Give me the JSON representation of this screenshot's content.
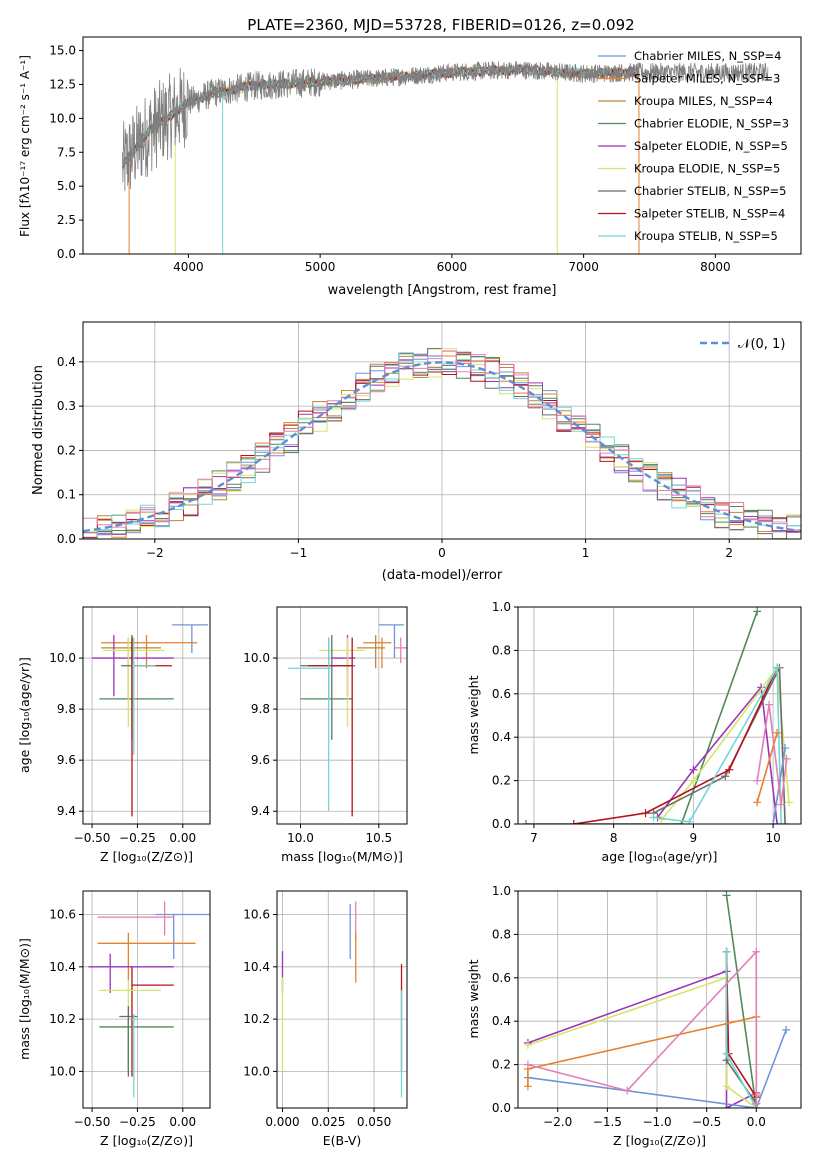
{
  "palette": {
    "chabrier_miles": "#6f94d8",
    "salpeter_miles": "#e87f2a",
    "kroupa_miles": "#b88a3c",
    "chabrier_elodie": "#4f8a5a",
    "salpeter_elodie": "#9b34b8",
    "kroupa_elodie": "#d7e46a",
    "chabrier_stelib": "#6b6b6b",
    "salpeter_stelib": "#b5121b",
    "kroupa_stelib": "#72d7d4",
    "pink": "#e47fb6",
    "gray_data": "#7f7f7f",
    "normal_curve": "#5b8fd6",
    "grid": "#b0b0b0"
  },
  "chart_data": [
    {
      "id": "spectrum",
      "type": "line",
      "title": "PLATE=2360, MJD=53728, FIBERID=0126, z=0.092",
      "xlabel": "wavelength [Angstrom, rest frame]",
      "ylabel": "Flux [fλ10⁻¹⁷ erg cm⁻² s⁻¹ A⁻¹]",
      "xlim": [
        3200,
        8650
      ],
      "ylim": [
        0,
        16
      ],
      "xticks": [
        4000,
        5000,
        6000,
        7000,
        8000
      ],
      "yticks": [
        0.0,
        2.5,
        5.0,
        7.5,
        10.0,
        12.5,
        15.0
      ],
      "grid": false,
      "legend": "right",
      "legend_entries": [
        "Chabrier MILES, N_SSP=4",
        "Salpeter MILES, N_SSP=3",
        "Kroupa MILES, N_SSP=4",
        "Chabrier ELODIE, N_SSP=3",
        "Salpeter ELODIE, N_SSP=5",
        "Kroupa ELODIE, N_SSP=5",
        "Chabrier STELIB, N_SSP=5",
        "Salpeter STELIB, N_SSP=4",
        "Kroupa STELIB, N_SSP=5"
      ],
      "continuum": [
        [
          3500,
          6.5
        ],
        [
          3600,
          7.8
        ],
        [
          3700,
          9.0
        ],
        [
          3800,
          9.8
        ],
        [
          3900,
          10.4
        ],
        [
          4000,
          11.2
        ],
        [
          4200,
          11.9
        ],
        [
          4500,
          12.4
        ],
        [
          5000,
          12.7
        ],
        [
          5500,
          13.0
        ],
        [
          6000,
          13.4
        ],
        [
          6500,
          13.6
        ],
        [
          7000,
          13.3
        ],
        [
          7400,
          13.4
        ]
      ],
      "data_range": [
        3500,
        8400
      ],
      "model_range": [
        3500,
        7420
      ]
    },
    {
      "id": "residuals",
      "type": "line",
      "xlabel": "(data-model)/error",
      "ylabel": "Normed distribution",
      "xlim": [
        -2.5,
        2.5
      ],
      "ylim": [
        0,
        0.49
      ],
      "xticks": [
        -2,
        -1,
        0,
        1,
        2
      ],
      "yticks": [
        0.0,
        0.1,
        0.2,
        0.3,
        0.4
      ],
      "grid": true,
      "legend": "upper right",
      "legend_entries": [
        "𝒩(0, 1)"
      ],
      "bin_width": 0.1
    },
    {
      "id": "age_vs_Z",
      "type": "scatter",
      "xlabel": "Z [log₁₀(Z/Z⊙)]",
      "ylabel": "age  [log₁₀(age/yr)]",
      "xlim": [
        -0.55,
        0.15
      ],
      "ylim": [
        9.35,
        10.2
      ],
      "xticks": [
        -0.5,
        -0.25,
        0.0
      ],
      "xticklabels": [
        "−0.50",
        "−0.25",
        "0.00"
      ],
      "yticks": [
        9.4,
        9.6,
        9.8,
        10.0
      ],
      "grid": true,
      "points": [
        {
          "c": "chabrier_miles",
          "x": 0.05,
          "y": 10.13,
          "ex": [
            -0.06,
            0.14
          ],
          "ey": [
            10.02,
            10.13
          ]
        },
        {
          "c": "salpeter_miles",
          "x": -0.2,
          "y": 10.06,
          "ex": [
            -0.45,
            0.08
          ],
          "ey": [
            9.96,
            10.09
          ]
        },
        {
          "c": "kroupa_miles",
          "x": -0.28,
          "y": 10.04,
          "ex": [
            -0.45,
            -0.12
          ],
          "ey": [
            9.96,
            10.09
          ]
        },
        {
          "c": "chabrier_elodie",
          "x": -0.3,
          "y": 9.84,
          "ex": [
            -0.46,
            -0.05
          ],
          "ey": [
            9.84,
            10.08
          ]
        },
        {
          "c": "salpeter_elodie",
          "x": -0.38,
          "y": 10.0,
          "ex": [
            -0.5,
            -0.05
          ],
          "ey": [
            9.85,
            10.09
          ]
        },
        {
          "c": "kroupa_elodie",
          "x": -0.3,
          "y": 10.03,
          "ex": [
            -0.44,
            -0.1
          ],
          "ey": [
            9.73,
            10.08
          ]
        },
        {
          "c": "chabrier_stelib",
          "x": -0.28,
          "y": 9.97,
          "ex": [
            -0.34,
            -0.15
          ],
          "ey": [
            9.68,
            10.09
          ]
        },
        {
          "c": "salpeter_stelib",
          "x": -0.28,
          "y": 9.97,
          "ex": [
            -0.28,
            -0.06
          ],
          "ey": [
            9.38,
            10.08
          ]
        },
        {
          "c": "kroupa_stelib",
          "x": -0.27,
          "y": 9.97,
          "ex": [
            -0.28,
            -0.15
          ],
          "ey": [
            9.62,
            10.08
          ]
        }
      ]
    },
    {
      "id": "age_vs_mass",
      "type": "scatter",
      "xlabel": "mass [log₁₀(M/M⊙)]",
      "ylabel": "",
      "xlim": [
        9.85,
        10.68
      ],
      "ylim": [
        9.35,
        10.2
      ],
      "xticks": [
        10.0,
        10.5
      ],
      "xticklabels": [
        "10.0",
        "10.5"
      ],
      "yticks": [
        9.4,
        9.6,
        9.8,
        10.0
      ],
      "grid": true,
      "points": [
        {
          "c": "chabrier_miles",
          "x": 10.6,
          "y": 10.13,
          "ex": [
            10.5,
            10.66
          ],
          "ey": [
            10.0,
            10.13
          ]
        },
        {
          "c": "salpeter_miles",
          "x": 10.52,
          "y": 10.06,
          "ex": [
            10.4,
            10.58
          ],
          "ey": [
            9.96,
            10.08
          ]
        },
        {
          "c": "kroupa_miles",
          "x": 10.48,
          "y": 10.04,
          "ex": [
            10.36,
            10.54
          ],
          "ey": [
            9.96,
            10.09
          ]
        },
        {
          "c": "chabrier_elodie",
          "x": 10.18,
          "y": 9.84,
          "ex": [
            10.0,
            10.33
          ],
          "ey": [
            9.84,
            10.08
          ]
        },
        {
          "c": "salpeter_elodie",
          "x": 10.3,
          "y": 10.0,
          "ex": [
            10.2,
            10.35
          ],
          "ey": [
            9.85,
            10.09
          ]
        },
        {
          "c": "kroupa_elodie",
          "x": 10.3,
          "y": 10.03,
          "ex": [
            10.12,
            10.41
          ],
          "ey": [
            9.73,
            10.08
          ]
        },
        {
          "c": "chabrier_stelib",
          "x": 10.2,
          "y": 9.97,
          "ex": [
            10.0,
            10.35
          ],
          "ey": [
            9.68,
            10.09
          ]
        },
        {
          "c": "salpeter_stelib",
          "x": 10.33,
          "y": 9.97,
          "ex": [
            10.05,
            10.33
          ],
          "ey": [
            9.38,
            10.08
          ]
        },
        {
          "c": "kroupa_stelib",
          "x": 10.18,
          "y": 9.96,
          "ex": [
            9.92,
            10.2
          ],
          "ey": [
            9.4,
            10.08
          ]
        },
        {
          "c": "pink",
          "x": 10.64,
          "y": 10.04,
          "ex": [
            10.6,
            10.68
          ],
          "ey": [
            9.98,
            10.08
          ]
        }
      ]
    },
    {
      "id": "weight_vs_age",
      "type": "line",
      "xlabel": "age  [log₁₀(age/yr)]",
      "ylabel": "mass weight",
      "xlim": [
        6.8,
        10.35
      ],
      "ylim": [
        0,
        1
      ],
      "xticks": [
        7,
        8,
        9,
        10
      ],
      "yticks": [
        0.0,
        0.2,
        0.4,
        0.6,
        0.8,
        1.0
      ],
      "grid": true,
      "series": [
        {
          "c": "chabrier_elodie",
          "points": [
            [
              6.9,
              0.0
            ],
            [
              8.85,
              0.0
            ],
            [
              9.8,
              0.98
            ]
          ]
        },
        {
          "c": "salpeter_elodie",
          "points": [
            [
              8.55,
              0.03
            ],
            [
              9.0,
              0.25
            ],
            [
              9.85,
              0.63
            ],
            [
              10.05,
              0.0
            ]
          ]
        },
        {
          "c": "kroupa_elodie",
          "points": [
            [
              8.6,
              0.02
            ],
            [
              9.0,
              0.2
            ],
            [
              10.05,
              0.72
            ],
            [
              10.2,
              0.1
            ]
          ]
        },
        {
          "c": "chabrier_stelib",
          "points": [
            [
              8.5,
              0.05
            ],
            [
              9.4,
              0.22
            ],
            [
              10.08,
              0.72
            ],
            [
              10.15,
              0.0
            ]
          ]
        },
        {
          "c": "salpeter_stelib",
          "points": [
            [
              7.5,
              0.0
            ],
            [
              8.4,
              0.05
            ],
            [
              9.45,
              0.25
            ],
            [
              10.05,
              0.72
            ]
          ]
        },
        {
          "c": "kroupa_stelib",
          "points": [
            [
              8.5,
              0.03
            ],
            [
              8.95,
              0.01
            ],
            [
              10.05,
              0.72
            ],
            [
              10.1,
              0.0
            ]
          ]
        },
        {
          "c": "chabrier_miles",
          "points": [
            [
              10.0,
              0.0
            ],
            [
              10.15,
              0.35
            ]
          ]
        },
        {
          "c": "salpeter_miles",
          "points": [
            [
              9.8,
              0.1
            ],
            [
              10.05,
              0.42
            ]
          ]
        },
        {
          "c": "pink",
          "points": [
            [
              9.8,
              0.2
            ],
            [
              9.95,
              0.55
            ],
            [
              10.1,
              0.09
            ],
            [
              10.17,
              0.3
            ]
          ]
        }
      ]
    },
    {
      "id": "mass_vs_Z",
      "type": "scatter",
      "xlabel": "Z [log₁₀(Z/Z⊙)]",
      "ylabel": "mass [log₁₀(M/M⊙)]",
      "xlim": [
        -0.55,
        0.15
      ],
      "ylim": [
        9.86,
        10.69
      ],
      "xticks": [
        -0.5,
        -0.25,
        0.0
      ],
      "xticklabels": [
        "−0.50",
        "−0.25",
        "0.00"
      ],
      "yticks": [
        10.0,
        10.2,
        10.4,
        10.6
      ],
      "grid": true,
      "points": [
        {
          "c": "chabrier_miles",
          "x": -0.05,
          "y": 10.6,
          "ex": [
            -0.15,
            0.17
          ],
          "ey": [
            10.43,
            10.6
          ]
        },
        {
          "c": "pink",
          "x": -0.1,
          "y": 10.59,
          "ex": [
            -0.47,
            -0.05
          ],
          "ey": [
            10.52,
            10.65
          ]
        },
        {
          "c": "salpeter_miles",
          "x": -0.3,
          "y": 10.49,
          "ex": [
            -0.47,
            0.07
          ],
          "ey": [
            10.35,
            10.53
          ]
        },
        {
          "c": "salpeter_elodie",
          "x": -0.4,
          "y": 10.4,
          "ex": [
            -0.52,
            -0.05
          ],
          "ey": [
            10.3,
            10.45
          ]
        },
        {
          "c": "salpeter_stelib",
          "x": -0.28,
          "y": 10.33,
          "ex": [
            -0.28,
            -0.05
          ],
          "ey": [
            9.98,
            10.4
          ]
        },
        {
          "c": "kroupa_elodie",
          "x": -0.3,
          "y": 10.31,
          "ex": [
            -0.46,
            -0.12
          ],
          "ey": [
            10.0,
            10.35
          ]
        },
        {
          "c": "chabrier_stelib",
          "x": -0.3,
          "y": 10.21,
          "ex": [
            -0.35,
            -0.25
          ],
          "ey": [
            9.98,
            10.25
          ]
        },
        {
          "c": "chabrier_elodie",
          "x": -0.3,
          "y": 10.17,
          "ex": [
            -0.46,
            -0.05
          ],
          "ey": [
            10.0,
            10.2
          ]
        },
        {
          "c": "kroupa_stelib",
          "x": -0.27,
          "y": 10.2,
          "ex": [
            -0.28,
            -0.25
          ],
          "ey": [
            9.9,
            10.22
          ]
        }
      ]
    },
    {
      "id": "mass_vs_ebv",
      "type": "scatter",
      "xlabel": "E(B-V)",
      "ylabel": "",
      "xlim": [
        -0.003,
        0.068
      ],
      "ylim": [
        9.86,
        10.69
      ],
      "xticks": [
        0.0,
        0.025,
        0.05
      ],
      "xticklabels": [
        "0.000",
        "0.025",
        "0.050"
      ],
      "yticks": [
        10.0,
        10.2,
        10.4,
        10.6
      ],
      "grid": true,
      "points": [
        {
          "c": "chabrier_miles",
          "x": 0.037,
          "y": 10.6,
          "ex": [
            0.037,
            0.037
          ],
          "ey": [
            10.43,
            10.64
          ]
        },
        {
          "c": "pink",
          "x": 0.04,
          "y": 10.6,
          "ex": [
            0.04,
            0.04
          ],
          "ey": [
            10.5,
            10.65
          ]
        },
        {
          "c": "salpeter_miles",
          "x": 0.04,
          "y": 10.49,
          "ex": [
            0.04,
            0.04
          ],
          "ey": [
            10.34,
            10.53
          ]
        },
        {
          "c": "salpeter_elodie",
          "x": 0.0,
          "y": 10.4,
          "ex": [
            0.0,
            0.0
          ],
          "ey": [
            10.3,
            10.46
          ]
        },
        {
          "c": "kroupa_elodie",
          "x": 0.0,
          "y": 10.31,
          "ex": [
            0.0,
            0.0
          ],
          "ey": [
            10.0,
            10.36
          ]
        },
        {
          "c": "salpeter_stelib",
          "x": 0.065,
          "y": 10.33,
          "ex": [
            0.065,
            0.065
          ],
          "ey": [
            10.0,
            10.41
          ]
        },
        {
          "c": "kroupa_stelib",
          "x": 0.065,
          "y": 10.2,
          "ex": [
            0.065,
            0.065
          ],
          "ey": [
            9.9,
            10.31
          ]
        }
      ]
    },
    {
      "id": "weight_vs_Z",
      "type": "line",
      "xlabel": "Z [log₁₀(Z/Z⊙)]",
      "ylabel": "mass weight",
      "xlim": [
        -2.4,
        0.45
      ],
      "ylim": [
        0,
        1
      ],
      "xticks": [
        -2.0,
        -1.5,
        -1.0,
        -0.5,
        0.0
      ],
      "xticklabels": [
        "−2.0",
        "−1.5",
        "−1.0",
        "−0.5",
        "0.0"
      ],
      "yticks": [
        0.0,
        0.2,
        0.4,
        0.6,
        0.8,
        1.0
      ],
      "grid": true,
      "series": [
        {
          "c": "chabrier_elodie",
          "points": [
            [
              -0.3,
              0.98
            ],
            [
              0.0,
              0.0
            ]
          ]
        },
        {
          "c": "salpeter_elodie",
          "points": [
            [
              -2.3,
              0.3
            ],
            [
              -0.3,
              0.63
            ],
            [
              -0.3,
              0.0
            ],
            [
              0.0,
              0.07
            ]
          ]
        },
        {
          "c": "kroupa_elodie",
          "points": [
            [
              -2.3,
              0.29
            ],
            [
              -0.3,
              0.6
            ],
            [
              -0.3,
              0.1
            ],
            [
              0.0,
              0.0
            ]
          ]
        },
        {
          "c": "chabrier_stelib",
          "points": [
            [
              -0.3,
              0.72
            ],
            [
              -0.3,
              0.22
            ],
            [
              0.0,
              0.02
            ]
          ]
        },
        {
          "c": "salpeter_stelib",
          "points": [
            [
              -0.3,
              0.72
            ],
            [
              -0.28,
              0.25
            ],
            [
              0.0,
              0.05
            ]
          ]
        },
        {
          "c": "kroupa_stelib",
          "points": [
            [
              -0.3,
              0.72
            ],
            [
              -0.3,
              0.25
            ],
            [
              0.0,
              0.0
            ]
          ]
        },
        {
          "c": "chabrier_miles",
          "points": [
            [
              -2.3,
              0.14
            ],
            [
              0.0,
              0.0
            ],
            [
              0.3,
              0.36
            ]
          ]
        },
        {
          "c": "salpeter_miles",
          "points": [
            [
              -2.3,
              0.1
            ],
            [
              -2.3,
              0.18
            ],
            [
              0.0,
              0.42
            ],
            [
              0.0,
              0.06
            ]
          ]
        },
        {
          "c": "pink",
          "points": [
            [
              -2.3,
              0.2
            ],
            [
              -1.3,
              0.08
            ],
            [
              0.0,
              0.72
            ],
            [
              0.0,
              0.02
            ]
          ]
        }
      ]
    }
  ]
}
